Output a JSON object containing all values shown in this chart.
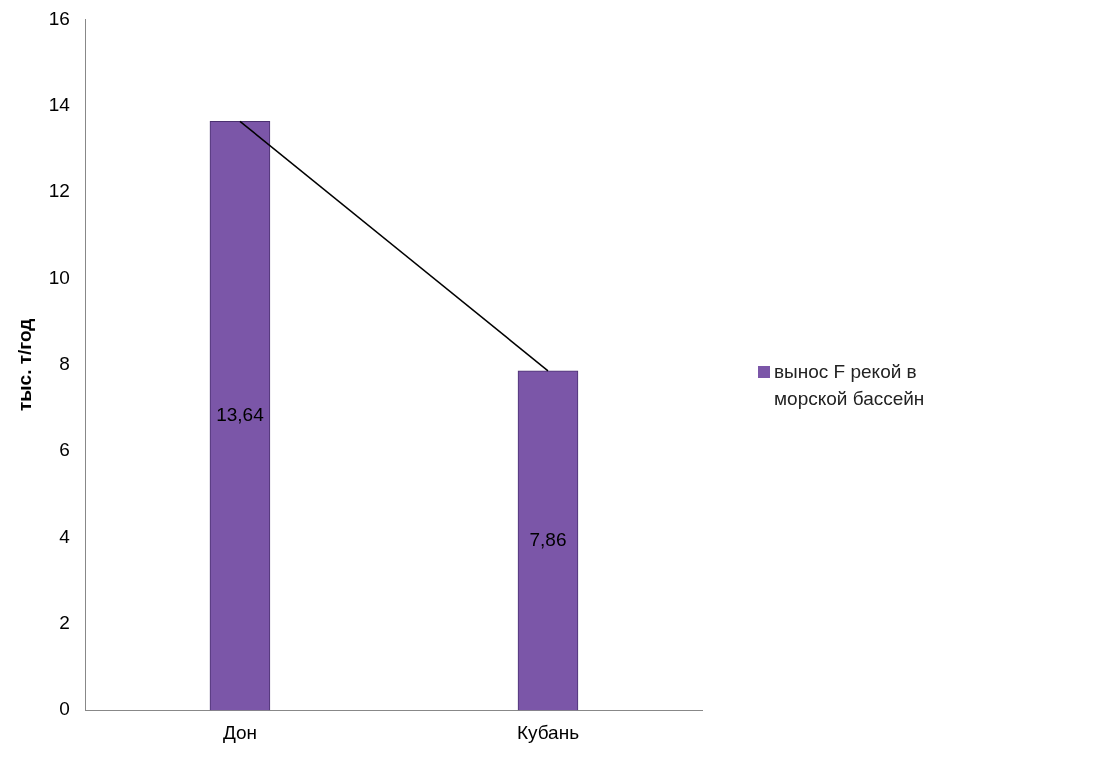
{
  "chart_data": {
    "type": "bar",
    "ylabel": "тыс. т/год",
    "categories": [
      "Дон",
      "Кубань"
    ],
    "series": [
      {
        "name": "вынос F рекой в морской бассейн",
        "color": "#7b56a8",
        "values": [
          13.64,
          7.86
        ],
        "value_labels": [
          "13,64",
          "7,86"
        ]
      },
      {
        "type": "line",
        "color": "#000000",
        "values": [
          13.64,
          7.86
        ]
      }
    ],
    "ylim": [
      0,
      16
    ],
    "yticks": [
      0,
      2,
      4,
      6,
      8,
      10,
      12,
      14,
      16
    ],
    "grid": false,
    "legend": "right",
    "marker": "none"
  }
}
